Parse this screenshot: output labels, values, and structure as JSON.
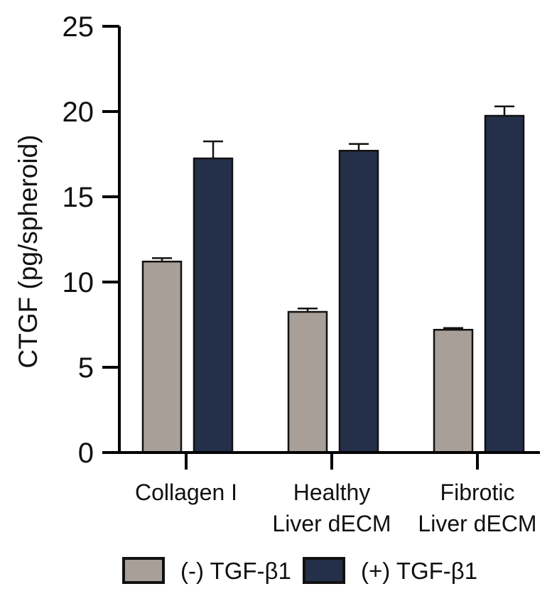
{
  "chart_data": {
    "type": "bar",
    "title": "",
    "xlabel": "",
    "ylabel": "CTGF (pg/spheroid)",
    "ylim": [
      0,
      25
    ],
    "yticks": [
      0,
      5,
      10,
      15,
      20,
      25
    ],
    "grid": false,
    "categories": [
      [
        "Collagen I"
      ],
      [
        "Healthy",
        "Liver dECM"
      ],
      [
        "Fibrotic",
        "Liver dECM"
      ]
    ],
    "series": [
      {
        "name": "(-) TGF-β1",
        "color": "#a89f99",
        "values": [
          11.2,
          8.25,
          7.2
        ],
        "error": [
          0.2,
          0.2,
          0.1
        ]
      },
      {
        "name": "(+) TGF-β1",
        "color": "#243049",
        "values": [
          17.25,
          17.7,
          19.75
        ],
        "error": [
          1.0,
          0.4,
          0.55
        ]
      }
    ],
    "legend": {
      "position": "bottom",
      "entries": [
        "(-) TGF-β1",
        "(+) TGF-β1"
      ]
    }
  }
}
